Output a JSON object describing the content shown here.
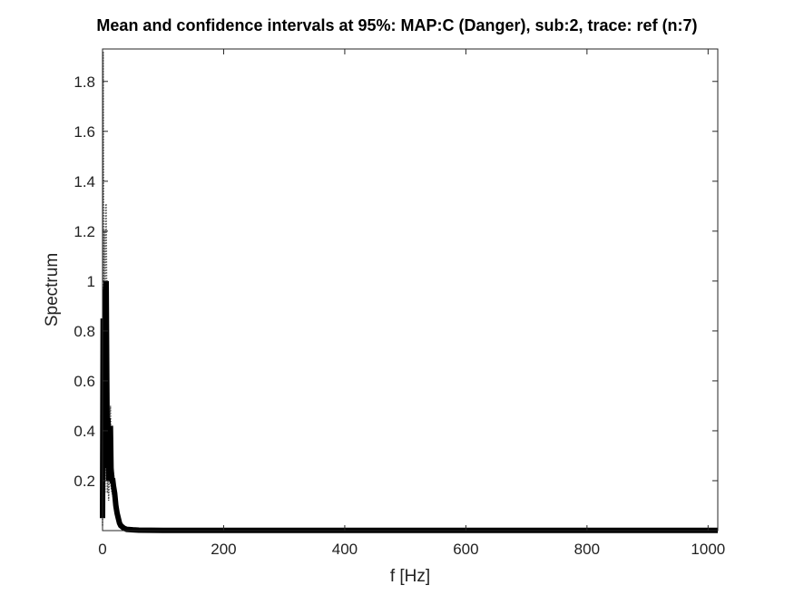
{
  "chart_data": {
    "type": "line",
    "title": "Mean and confidence intervals at 95%: MAP:C (Danger), sub:2, trace: ref (n:7)",
    "xlabel": "f [Hz]",
    "ylabel": "Spectrum",
    "xlim": [
      0,
      1016
    ],
    "ylim": [
      0,
      1.93
    ],
    "xticks": [
      0,
      200,
      400,
      600,
      800,
      1000
    ],
    "xtick_labels": [
      "0",
      "200",
      "400",
      "600",
      "800",
      "1000"
    ],
    "yticks": [
      0.2,
      0.4,
      0.6,
      0.8,
      1,
      1.2,
      1.4,
      1.6,
      1.8
    ],
    "ytick_labels": [
      "0.2",
      "0.4",
      "0.6",
      "0.8",
      "1",
      "1.2",
      "1.4",
      "1.6",
      "1.8"
    ],
    "grid": false,
    "legend": "none",
    "series": [
      {
        "role": "mean",
        "color": "#000000",
        "x": [
          0,
          1,
          2,
          3,
          4,
          5,
          6,
          7,
          8,
          9,
          10,
          11,
          12,
          13,
          14,
          15,
          16,
          17,
          18,
          20,
          22,
          24,
          26,
          28,
          30,
          35,
          40,
          50,
          60,
          100,
          200,
          400,
          600,
          800,
          1000,
          1016
        ],
        "y": [
          0.05,
          0.85,
          0.45,
          0.7,
          0.3,
          0.95,
          1.0,
          0.6,
          0.25,
          0.45,
          0.2,
          0.3,
          0.35,
          0.42,
          0.25,
          0.22,
          0.2,
          0.2,
          0.18,
          0.15,
          0.1,
          0.07,
          0.05,
          0.03,
          0.02,
          0.01,
          0.005,
          0.003,
          0.002,
          0.001,
          0.001,
          0.001,
          0.001,
          0.001,
          0.001,
          0.001
        ]
      },
      {
        "role": "upper-ci",
        "color": "#555555",
        "x": [
          0,
          1,
          2,
          3,
          4,
          5,
          6,
          7,
          8,
          9,
          10,
          11,
          12,
          13,
          14,
          15,
          16,
          17,
          18,
          20,
          22,
          24,
          26,
          28,
          30,
          35,
          40,
          50,
          60,
          100,
          200,
          400,
          600,
          800,
          1000,
          1016
        ],
        "y": [
          0.1,
          1.92,
          1.0,
          1.2,
          0.6,
          1.3,
          1.31,
          0.9,
          0.4,
          0.6,
          0.3,
          0.4,
          0.45,
          0.5,
          0.35,
          0.3,
          0.27,
          0.25,
          0.23,
          0.2,
          0.14,
          0.1,
          0.07,
          0.05,
          0.035,
          0.02,
          0.01,
          0.006,
          0.004,
          0.002,
          0.002,
          0.002,
          0.002,
          0.002,
          0.002,
          0.002
        ]
      },
      {
        "role": "lower-ci",
        "color": "#555555",
        "x": [
          0,
          1,
          2,
          3,
          4,
          5,
          6,
          7,
          8,
          9,
          10,
          11,
          12,
          13,
          14,
          15,
          16,
          17,
          18,
          20,
          22,
          24,
          26,
          28,
          30,
          35,
          40,
          50,
          60,
          100,
          200,
          400,
          600,
          800,
          1000,
          1016
        ],
        "y": [
          0.02,
          0.5,
          0.2,
          0.4,
          0.15,
          0.6,
          0.75,
          0.35,
          0.15,
          0.3,
          0.12,
          0.2,
          0.25,
          0.33,
          0.18,
          0.16,
          0.15,
          0.14,
          0.13,
          0.1,
          0.07,
          0.05,
          0.035,
          0.02,
          0.012,
          0.006,
          0.003,
          0.002,
          0.001,
          0.0005,
          0.0005,
          0.0005,
          0.0005,
          0.0005,
          0.0005,
          0.0005
        ]
      }
    ]
  }
}
